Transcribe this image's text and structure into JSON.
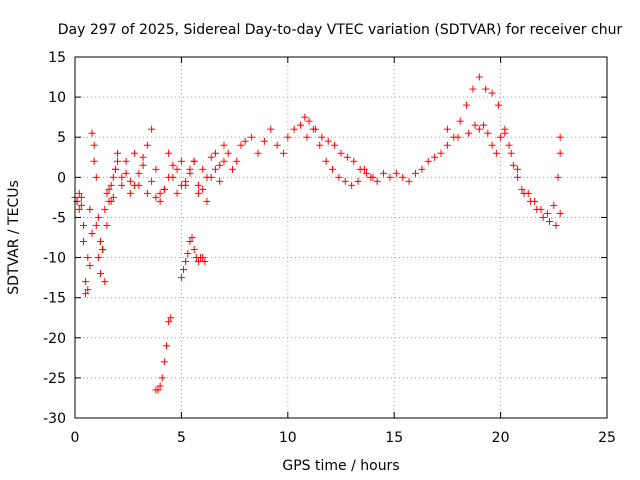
{
  "chart_data": {
    "type": "scatter",
    "title": "Day 297 of 2025, Sidereal Day-to-day VTEC variation (SDTVAR) for receiver chur",
    "xlabel": "GPS time / hours",
    "ylabel": "SDTVAR / TECUs",
    "xlim": [
      0,
      25
    ],
    "ylim": [
      -30,
      15
    ],
    "xticks": [
      "0",
      "5",
      "10",
      "15",
      "20",
      "25"
    ],
    "yticks": [
      "-30",
      "-25",
      "-20",
      "-15",
      "-10",
      "-5",
      "0",
      "5",
      "10",
      "15"
    ],
    "grid": true,
    "marker": "plus",
    "color": "#ff0000",
    "series": [
      {
        "name": "SDTVAR",
        "x": [
          0.0,
          0.1,
          0.2,
          0.3,
          0.4,
          0.5,
          0.6,
          0.7,
          0.8,
          0.9,
          1.0,
          1.1,
          1.2,
          1.3,
          1.4,
          1.5,
          1.6,
          1.7,
          1.8,
          1.9,
          2.0,
          2.2,
          2.4,
          2.6,
          2.8,
          3.0,
          3.2,
          3.4,
          3.6,
          3.8,
          4.0,
          4.2,
          4.4,
          4.6,
          4.8,
          5.0,
          5.2,
          5.4,
          5.6,
          5.8,
          6.0,
          6.2,
          6.4,
          6.6,
          6.8,
          7.0,
          7.2,
          7.4,
          7.6,
          7.8,
          8.0,
          8.3,
          8.6,
          8.9,
          9.2,
          9.5,
          9.8,
          10.0,
          10.3,
          10.6,
          10.9,
          11.2,
          11.5,
          11.8,
          12.1,
          12.4,
          12.7,
          13.0,
          13.3,
          13.6,
          13.9,
          14.2,
          14.5,
          14.8,
          15.1,
          15.4,
          15.7,
          16.0,
          16.3,
          16.6,
          16.9,
          17.2,
          17.5,
          17.8,
          18.1,
          18.4,
          18.7,
          19.0,
          19.3,
          19.6,
          19.9,
          20.2,
          20.5,
          20.8,
          21.1,
          21.4,
          21.7,
          22.0,
          22.3,
          22.6,
          22.8,
          0.1,
          0.2,
          0.3,
          0.4,
          0.5,
          0.6,
          0.7,
          0.8,
          0.9,
          1.0,
          1.1,
          1.2,
          1.3,
          1.4,
          1.5,
          1.6,
          1.7,
          1.8,
          1.9,
          2.0,
          2.2,
          2.4,
          2.6,
          2.8,
          3.0,
          3.2,
          3.4,
          3.6,
          3.8,
          4.0,
          4.2,
          4.4,
          4.6,
          4.8,
          5.0,
          5.2,
          5.4,
          5.6,
          5.8,
          6.0,
          6.2,
          6.4,
          6.6,
          6.8,
          7.0,
          3.8,
          3.9,
          4.0,
          4.1,
          4.2,
          4.3,
          4.4,
          4.5,
          5.0,
          5.1,
          5.2,
          5.3,
          5.4,
          5.5,
          5.6,
          5.7,
          5.8,
          5.9,
          6.0,
          6.1,
          10.8,
          11.0,
          11.3,
          11.6,
          11.9,
          12.2,
          12.5,
          12.8,
          13.1,
          13.4,
          13.7,
          14.0,
          17.5,
          18.0,
          18.5,
          18.8,
          19.0,
          19.2,
          19.4,
          19.6,
          19.8,
          20.0,
          20.2,
          20.4,
          20.6,
          20.8,
          21.0,
          21.3,
          21.6,
          21.9,
          22.2,
          22.5,
          22.7,
          22.8,
          22.8
        ],
        "y": [
          -2.5,
          -3.0,
          -2.0,
          -3.5,
          -8.0,
          -13.0,
          -10.0,
          -4.0,
          5.5,
          2.0,
          -6.0,
          -10.0,
          -12.0,
          -9.0,
          -4.0,
          -2.0,
          -1.5,
          -3.0,
          -2.5,
          1.0,
          3.0,
          -1.0,
          2.0,
          -2.0,
          3.0,
          -1.0,
          2.5,
          4.0,
          6.0,
          1.0,
          -2.0,
          -1.5,
          3.0,
          1.5,
          1.0,
          2.0,
          -1.0,
          0.5,
          2.0,
          -2.0,
          1.0,
          0.0,
          2.5,
          3.0,
          1.5,
          4.0,
          3.0,
          1.0,
          2.0,
          4.0,
          4.5,
          5.0,
          3.0,
          4.5,
          6.0,
          4.0,
          3.0,
          5.0,
          6.0,
          6.5,
          5.0,
          6.0,
          4.0,
          2.0,
          1.0,
          0.0,
          -0.5,
          -1.0,
          -0.5,
          1.0,
          0.0,
          -0.5,
          0.5,
          0.0,
          0.5,
          0.0,
          -0.5,
          0.5,
          1.0,
          2.0,
          2.5,
          3.0,
          4.0,
          5.0,
          7.0,
          9.0,
          11.0,
          12.5,
          11.0,
          10.5,
          9.0,
          6.0,
          3.0,
          0.0,
          -2.0,
          -3.0,
          -4.0,
          -5.0,
          -5.5,
          -6.0,
          -4.5,
          -3.0,
          -4.0,
          -2.5,
          -6.0,
          -14.5,
          -14.0,
          -11.0,
          -7.0,
          4.0,
          0.0,
          -5.0,
          -8.0,
          -9.0,
          -13.0,
          -6.0,
          -3.0,
          -1.0,
          0.0,
          1.0,
          2.0,
          0.0,
          0.5,
          -0.5,
          -1.0,
          0.5,
          1.5,
          -2.0,
          -0.5,
          -2.5,
          -3.0,
          -1.5,
          0.0,
          0.0,
          -2.0,
          -1.0,
          -0.5,
          1.0,
          2.0,
          -1.0,
          -1.5,
          -3.0,
          0.0,
          1.0,
          -0.5,
          2.0,
          -26.5,
          -26.5,
          -26.0,
          -25.0,
          -23.0,
          -21.0,
          -18.0,
          -17.5,
          -12.5,
          -11.5,
          -10.5,
          -9.5,
          -8.0,
          -7.5,
          -9.0,
          -10.0,
          -10.5,
          -10.0,
          -10.0,
          -10.5,
          7.5,
          7.0,
          6.0,
          5.0,
          4.5,
          4.0,
          3.0,
          2.5,
          2.0,
          1.0,
          0.5,
          0.0,
          6.0,
          5.0,
          5.5,
          6.5,
          6.0,
          6.5,
          5.5,
          4.0,
          3.0,
          5.0,
          5.5,
          4.0,
          1.5,
          1.0,
          -1.5,
          -2.0,
          -3.0,
          -4.0,
          -4.5,
          -3.5,
          0.0,
          3.0,
          5.0
        ]
      }
    ]
  }
}
